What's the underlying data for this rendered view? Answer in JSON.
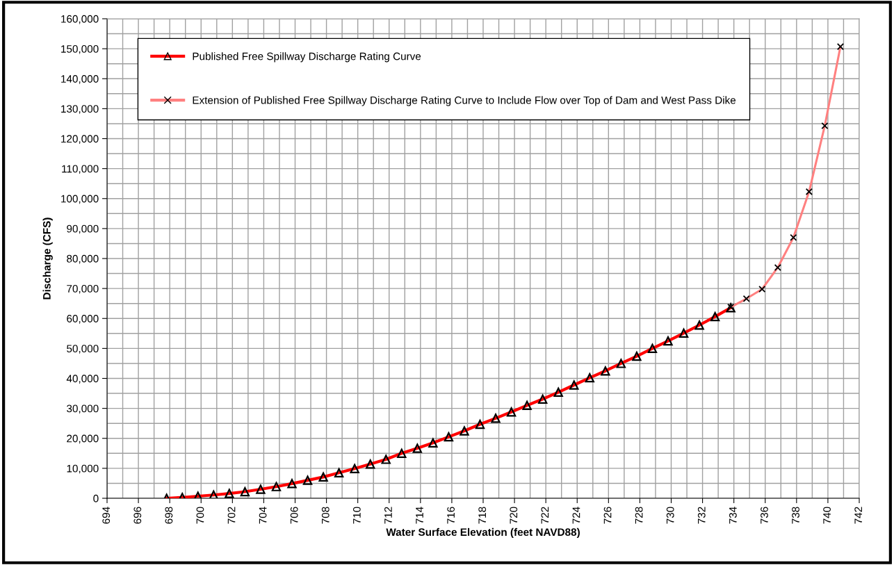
{
  "chart_data": {
    "type": "line",
    "xlabel": "Water Surface Elevation (feet NAVD88)",
    "ylabel": "Discharge (CFS)",
    "xlim": [
      694,
      742
    ],
    "xticks": [
      694,
      696,
      698,
      700,
      702,
      704,
      706,
      708,
      710,
      712,
      714,
      716,
      718,
      720,
      722,
      724,
      726,
      728,
      730,
      732,
      734,
      736,
      738,
      740,
      742
    ],
    "ylim": [
      0,
      160000
    ],
    "yticks": [
      {
        "value": 0,
        "label": "0"
      },
      {
        "value": 10000,
        "label": "10,000"
      },
      {
        "value": 20000,
        "label": "20,000"
      },
      {
        "value": 30000,
        "label": "30,000"
      },
      {
        "value": 40000,
        "label": "40,000"
      },
      {
        "value": 50000,
        "label": "50,000"
      },
      {
        "value": 60000,
        "label": "60,000"
      },
      {
        "value": 70000,
        "label": "70,000"
      },
      {
        "value": 80000,
        "label": "80,000"
      },
      {
        "value": 90000,
        "label": "90,000"
      },
      {
        "value": 100000,
        "label": "100,000"
      },
      {
        "value": 110000,
        "label": "110,000"
      },
      {
        "value": 120000,
        "label": "120,000"
      },
      {
        "value": 130000,
        "label": "130,000"
      },
      {
        "value": 140000,
        "label": "140,000"
      },
      {
        "value": 150000,
        "label": "150,000"
      },
      {
        "value": 160000,
        "label": "160,000"
      }
    ],
    "grid": true,
    "legend": "top left",
    "line_style": "solid",
    "series": [
      {
        "name": "Extension of Published Free Spillway Discharge Rating Curve to Include Flow over Top of Dam and West Pass Dike",
        "color": "#ff8080",
        "marker": "cross",
        "x": [
          733.8,
          734.8,
          735.8,
          736.8,
          737.8,
          738.8,
          739.8,
          740.8
        ],
        "values": [
          63800,
          66600,
          69800,
          77000,
          87000,
          102300,
          124300,
          150700
        ]
      },
      {
        "name": "Published Free Spillway Discharge Rating Curve",
        "color": "#ff0000",
        "marker": "triangle",
        "x": [
          697.8,
          698.8,
          699.8,
          700.8,
          701.8,
          702.8,
          703.8,
          704.8,
          705.8,
          706.8,
          707.8,
          708.8,
          709.8,
          710.8,
          711.8,
          712.8,
          713.8,
          714.8,
          715.8,
          716.8,
          717.8,
          718.8,
          719.8,
          720.8,
          721.8,
          722.8,
          723.8,
          724.8,
          725.8,
          726.8,
          727.8,
          728.8,
          729.8,
          730.8,
          731.8,
          732.8,
          733.8
        ],
        "values": [
          0,
          300,
          700,
          1100,
          1600,
          2200,
          3000,
          3900,
          4900,
          6000,
          7100,
          8500,
          9900,
          11400,
          13000,
          15000,
          16700,
          18500,
          20500,
          22500,
          24700,
          26700,
          28800,
          31000,
          33100,
          35400,
          37800,
          40200,
          42500,
          45000,
          47400,
          50000,
          52500,
          55100,
          57800,
          60600,
          63600
        ]
      }
    ]
  }
}
